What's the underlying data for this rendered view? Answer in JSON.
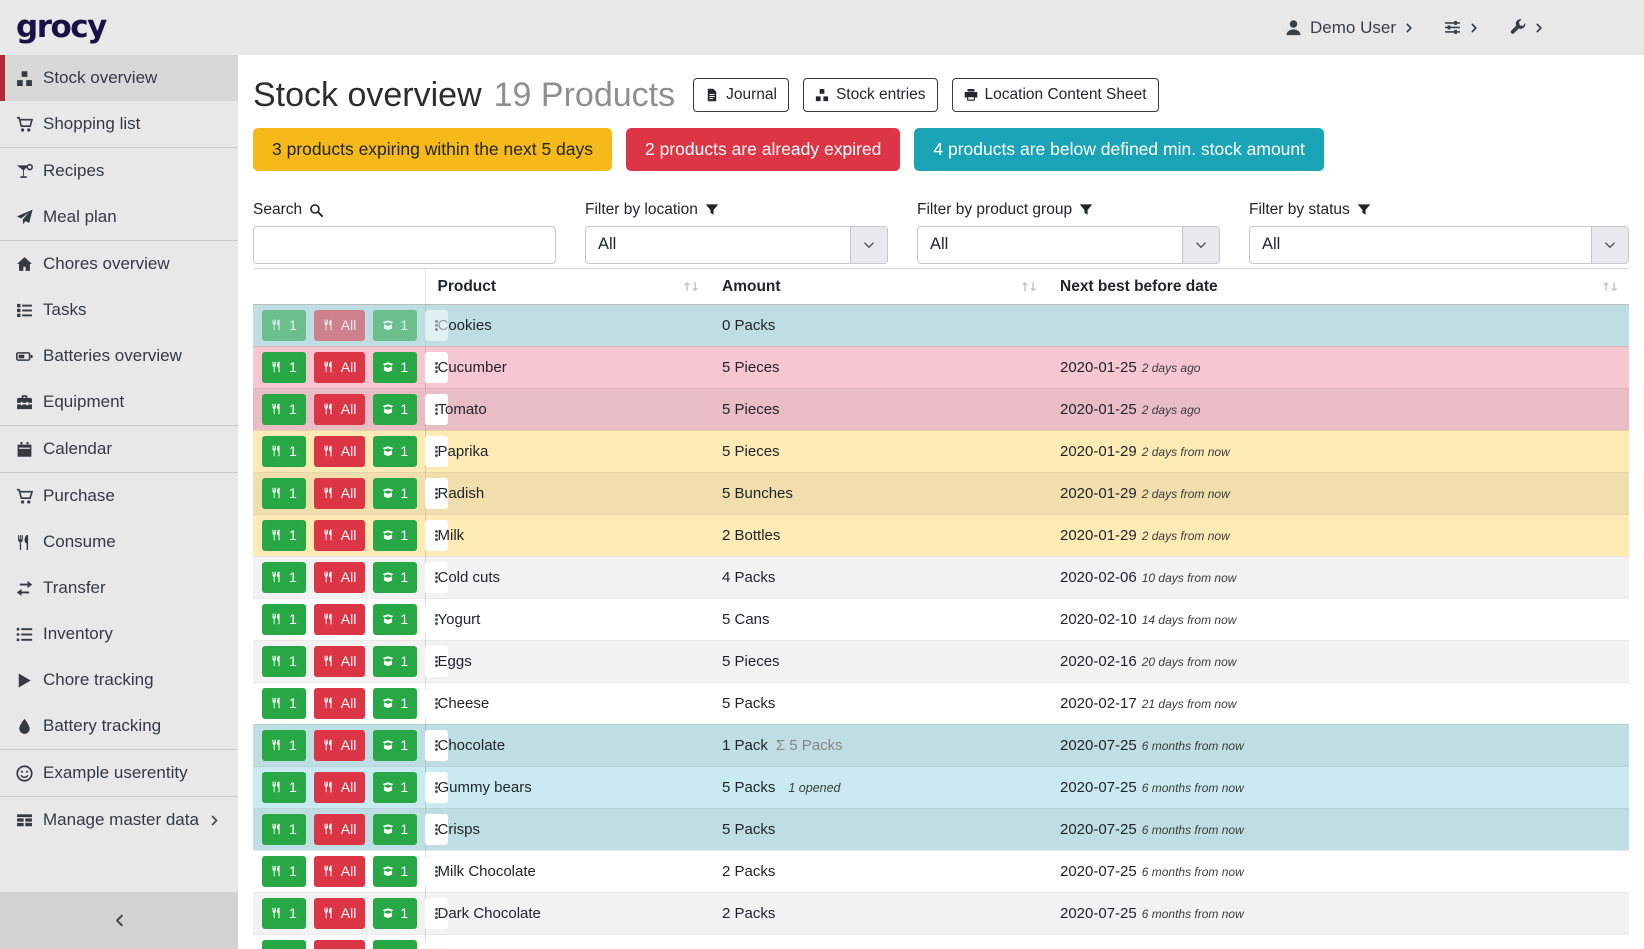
{
  "navbar": {
    "logo": "grocy",
    "user_label": "Demo User"
  },
  "sidebar": {
    "items": [
      {
        "label": "Stock overview",
        "icon": "icon-boxes",
        "icon_name": "boxes-icon",
        "active": true
      },
      {
        "label": "Shopping list",
        "icon": "icon-cart",
        "icon_name": "shopping-cart-icon",
        "divider_after": true
      },
      {
        "label": "Recipes",
        "icon": "icon-cocktail",
        "icon_name": "cocktail-icon"
      },
      {
        "label": "Meal plan",
        "icon": "icon-plane",
        "icon_name": "paper-plane-icon",
        "divider_after": true
      },
      {
        "label": "Chores overview",
        "icon": "icon-home",
        "icon_name": "home-icon"
      },
      {
        "label": "Tasks",
        "icon": "icon-tasks",
        "icon_name": "tasks-icon"
      },
      {
        "label": "Batteries overview",
        "icon": "icon-battery",
        "icon_name": "battery-icon"
      },
      {
        "label": "Equipment",
        "icon": "icon-toolbox",
        "icon_name": "toolbox-icon",
        "divider_after": true
      },
      {
        "label": "Calendar",
        "icon": "icon-calendar",
        "icon_name": "calendar-icon",
        "divider_after": true
      },
      {
        "label": "Purchase",
        "icon": "icon-cart",
        "icon_name": "shopping-cart-icon"
      },
      {
        "label": "Consume",
        "icon": "icon-utensils",
        "icon_name": "utensils-icon"
      },
      {
        "label": "Transfer",
        "icon": "icon-exchange",
        "icon_name": "transfer-arrows-icon"
      },
      {
        "label": "Inventory",
        "icon": "icon-list",
        "icon_name": "list-icon"
      },
      {
        "label": "Chore tracking",
        "icon": "icon-play",
        "icon_name": "play-icon"
      },
      {
        "label": "Battery tracking",
        "icon": "icon-tint",
        "icon_name": "drop-icon",
        "divider_after": true
      },
      {
        "label": "Example userentity",
        "icon": "icon-smiley",
        "icon_name": "smiley-icon",
        "divider_after": true
      },
      {
        "label": "Manage master data",
        "icon": "icon-table",
        "icon_name": "table-icon",
        "chevron": true
      }
    ]
  },
  "header": {
    "title": "Stock overview",
    "count_label": "19 Products",
    "buttons": [
      {
        "label": "Journal",
        "icon": "file-icon"
      },
      {
        "label": "Stock entries",
        "icon": "boxes-icon"
      },
      {
        "label": "Location Content Sheet",
        "icon": "print-icon"
      }
    ]
  },
  "alerts": [
    {
      "text": "3 products expiring within the next 5 days",
      "color": "#f5ba1a",
      "text_color": "#212529"
    },
    {
      "text": "2 products are already expired",
      "color": "#dc3545",
      "text_color": "#ffffff"
    },
    {
      "text": "4 products are below defined min. stock amount",
      "color": "#1ba4b6",
      "text_color": "#ffffff"
    }
  ],
  "filters": {
    "search_label": "Search",
    "search_value": "",
    "location_label": "Filter by location",
    "location_value": "All",
    "product_group_label": "Filter by product group",
    "product_group_value": "All",
    "status_label": "Filter by status",
    "status_value": "All"
  },
  "table": {
    "columns": [
      "Product",
      "Amount",
      "Next best before date"
    ],
    "actions": {
      "consume_one_label": "1",
      "consume_all_label": "All",
      "open_one_label": "1"
    },
    "rows": [
      {
        "product": "Cookies",
        "amount": "0 Packs",
        "date": "",
        "timeago": "",
        "status": "belowmin",
        "disabled": true
      },
      {
        "product": "Cucumber",
        "amount": "5 Pieces",
        "date": "2020-01-25",
        "timeago": "2 days ago",
        "status": "expired"
      },
      {
        "product": "Tomato",
        "amount": "5 Pieces",
        "date": "2020-01-25",
        "timeago": "2 days ago",
        "status": "expired"
      },
      {
        "product": "Paprika",
        "amount": "5 Pieces",
        "date": "2020-01-29",
        "timeago": "2 days from now",
        "status": "expiring"
      },
      {
        "product": "Radish",
        "amount": "5 Bunches",
        "date": "2020-01-29",
        "timeago": "2 days from now",
        "status": "expiring"
      },
      {
        "product": "Milk",
        "amount": "2 Bottles",
        "date": "2020-01-29",
        "timeago": "2 days from now",
        "status": "expiring"
      },
      {
        "product": "Cold cuts",
        "amount": "4 Packs",
        "date": "2020-02-06",
        "timeago": "10 days from now",
        "status": "none"
      },
      {
        "product": "Yogurt",
        "amount": "5 Cans",
        "date": "2020-02-10",
        "timeago": "14 days from now",
        "status": "none"
      },
      {
        "product": "Eggs",
        "amount": "5 Pieces",
        "date": "2020-02-16",
        "timeago": "20 days from now",
        "status": "none"
      },
      {
        "product": "Cheese",
        "amount": "5 Packs",
        "date": "2020-02-17",
        "timeago": "21 days from now",
        "status": "none"
      },
      {
        "product": "Chocolate",
        "amount": "1 Pack",
        "amount_aggregated": "Σ 5 Packs",
        "date": "2020-07-25",
        "timeago": "6 months from now",
        "status": "belowmin"
      },
      {
        "product": "Gummy bears",
        "amount": "5 Packs",
        "amount_opened": "1 opened",
        "date": "2020-07-25",
        "timeago": "6 months from now",
        "status": "belowmin"
      },
      {
        "product": "Crisps",
        "amount": "5 Packs",
        "date": "2020-07-25",
        "timeago": "6 months from now",
        "status": "belowmin"
      },
      {
        "product": "Milk Chocolate",
        "amount": "2 Packs",
        "date": "2020-07-25",
        "timeago": "6 months from now",
        "status": "none"
      },
      {
        "product": "Dark Chocolate",
        "amount": "2 Packs",
        "date": "2020-07-25",
        "timeago": "6 months from now",
        "status": "none"
      },
      {
        "product": "",
        "amount": "",
        "date": "",
        "timeago": "",
        "status": "none",
        "partial": true
      }
    ]
  }
}
